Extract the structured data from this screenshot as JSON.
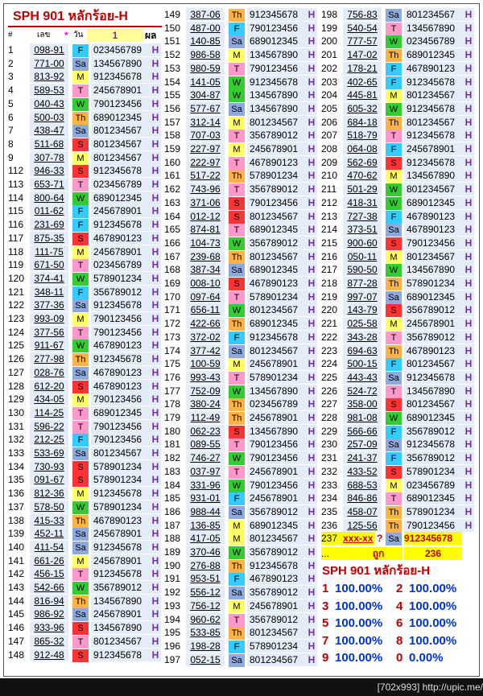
{
  "header": {
    "title": "SPH 901 หลักร้อย-H",
    "cols": [
      "#",
      "เลข",
      "*",
      "วัน",
      "1",
      "ผล"
    ]
  },
  "columns": [
    {
      "rows": [
        [
          "1",
          "098-91",
          "F",
          "023456789",
          "H"
        ],
        [
          "2",
          "771-00",
          "Sa",
          "134567890",
          "H"
        ],
        [
          "3",
          "813-92",
          "M",
          "912345678",
          "H"
        ],
        [
          "4",
          "589-53",
          "T",
          "245678901",
          "H"
        ],
        [
          "5",
          "040-43",
          "W",
          "790123456",
          "H"
        ],
        [
          "6",
          "500-03",
          "Th",
          "689012345",
          "H"
        ],
        [
          "7",
          "438-47",
          "Sa",
          "801234567",
          "H"
        ],
        [
          "8",
          "511-68",
          "S",
          "801234567",
          "H"
        ],
        [
          "9",
          "307-78",
          "M",
          "801234567",
          "H"
        ],
        [
          "112",
          "946-33",
          "S",
          "912345678",
          "H"
        ],
        [
          "113",
          "653-71",
          "T",
          "023456789",
          "H"
        ],
        [
          "114",
          "800-64",
          "W",
          "689012345",
          "H"
        ],
        [
          "115",
          "011-62",
          "F",
          "245678901",
          "H"
        ],
        [
          "116",
          "231-69",
          "F",
          "912345678",
          "H"
        ],
        [
          "117",
          "875-35",
          "S",
          "467890123",
          "H"
        ],
        [
          "118",
          "111-75",
          "M",
          "245678901",
          "H"
        ],
        [
          "119",
          "671-50",
          "T",
          "023456789",
          "H"
        ],
        [
          "120",
          "374-41",
          "W",
          "578901234",
          "H"
        ],
        [
          "121",
          "348-11",
          "F",
          "356789012",
          "H"
        ],
        [
          "122",
          "377-36",
          "Sa",
          "912345678",
          "H"
        ],
        [
          "123",
          "993-09",
          "M",
          "790123456",
          "H"
        ],
        [
          "124",
          "377-56",
          "T",
          "790123456",
          "H"
        ],
        [
          "125",
          "911-67",
          "W",
          "467890123",
          "H"
        ],
        [
          "126",
          "277-98",
          "Th",
          "912345678",
          "H"
        ],
        [
          "127",
          "028-76",
          "Sa",
          "467890123",
          "H"
        ],
        [
          "128",
          "612-20",
          "S",
          "467890123",
          "H"
        ],
        [
          "129",
          "434-05",
          "M",
          "790123456",
          "H"
        ],
        [
          "130",
          "114-25",
          "T",
          "689012345",
          "H"
        ],
        [
          "131",
          "596-22",
          "T",
          "790123456",
          "H"
        ],
        [
          "132",
          "212-25",
          "F",
          "790123456",
          "H"
        ],
        [
          "133",
          "533-69",
          "Sa",
          "801234567",
          "H"
        ],
        [
          "134",
          "730-93",
          "S",
          "578901234",
          "H"
        ],
        [
          "135",
          "091-67",
          "S",
          "578901234",
          "H"
        ],
        [
          "136",
          "812-36",
          "M",
          "912345678",
          "H"
        ],
        [
          "137",
          "578-50",
          "W",
          "578901234",
          "H"
        ],
        [
          "138",
          "415-33",
          "Th",
          "467890123",
          "H"
        ],
        [
          "139",
          "452-11",
          "Sa",
          "245678901",
          "H"
        ],
        [
          "140",
          "411-54",
          "Sa",
          "912345678",
          "H"
        ],
        [
          "141",
          "661-26",
          "M",
          "245678901",
          "H"
        ],
        [
          "142",
          "456-15",
          "T",
          "912345678",
          "H"
        ],
        [
          "143",
          "542-66",
          "W",
          "356789012",
          "H"
        ],
        [
          "144",
          "816-94",
          "Th",
          "134567890",
          "H"
        ],
        [
          "145",
          "986-92",
          "Sa",
          "245678901",
          "H"
        ],
        [
          "146",
          "933-96",
          "S",
          "134567890",
          "H"
        ],
        [
          "147",
          "865-32",
          "T",
          "801234567",
          "H"
        ],
        [
          "148",
          "912-48",
          "S",
          "912345678",
          "H"
        ]
      ]
    },
    {
      "rows": [
        [
          "149",
          "387-06",
          "Th",
          "912345678",
          "H"
        ],
        [
          "150",
          "487-00",
          "F",
          "790123456",
          "H"
        ],
        [
          "151",
          "140-85",
          "Sa",
          "689012345",
          "H"
        ],
        [
          "152",
          "986-58",
          "M",
          "134567890",
          "H"
        ],
        [
          "153",
          "980-59",
          "T",
          "790123456",
          "H"
        ],
        [
          "154",
          "141-05",
          "W",
          "912345678",
          "H"
        ],
        [
          "155",
          "304-87",
          "W",
          "134567890",
          "H"
        ],
        [
          "156",
          "577-67",
          "Sa",
          "134567890",
          "H"
        ],
        [
          "157",
          "312-14",
          "M",
          "801234567",
          "H"
        ],
        [
          "158",
          "707-03",
          "T",
          "356789012",
          "H"
        ],
        [
          "159",
          "227-97",
          "M",
          "245678901",
          "H"
        ],
        [
          "160",
          "222-97",
          "T",
          "467890123",
          "H"
        ],
        [
          "161",
          "517-22",
          "Th",
          "578901234",
          "H"
        ],
        [
          "162",
          "743-96",
          "T",
          "356789012",
          "H"
        ],
        [
          "163",
          "371-06",
          "S",
          "790123456",
          "H"
        ],
        [
          "164",
          "012-12",
          "S",
          "801234567",
          "H"
        ],
        [
          "165",
          "874-81",
          "T",
          "689012345",
          "H"
        ],
        [
          "166",
          "104-73",
          "W",
          "356789012",
          "H"
        ],
        [
          "167",
          "239-68",
          "Th",
          "801234567",
          "H"
        ],
        [
          "168",
          "387-34",
          "Sa",
          "689012345",
          "H"
        ],
        [
          "169",
          "008-10",
          "S",
          "467890123",
          "H"
        ],
        [
          "170",
          "097-64",
          "T",
          "578901234",
          "H"
        ],
        [
          "171",
          "656-11",
          "W",
          "801234567",
          "H"
        ],
        [
          "172",
          "422-66",
          "Th",
          "689012345",
          "H"
        ],
        [
          "173",
          "372-02",
          "F",
          "912345678",
          "H"
        ],
        [
          "174",
          "377-42",
          "Sa",
          "801234567",
          "H"
        ],
        [
          "175",
          "100-59",
          "M",
          "245678901",
          "H"
        ],
        [
          "176",
          "993-43",
          "T",
          "578901234",
          "H"
        ],
        [
          "177",
          "752-09",
          "W",
          "134567890",
          "H"
        ],
        [
          "178",
          "380-24",
          "Th",
          "023456789",
          "H"
        ],
        [
          "179",
          "112-49",
          "Th",
          "245678901",
          "H"
        ],
        [
          "180",
          "062-23",
          "S",
          "134567890",
          "H"
        ],
        [
          "181",
          "089-55",
          "T",
          "790123456",
          "H"
        ],
        [
          "182",
          "746-27",
          "W",
          "790123456",
          "H"
        ],
        [
          "183",
          "037-97",
          "T",
          "245678901",
          "H"
        ],
        [
          "184",
          "331-96",
          "W",
          "790123456",
          "H"
        ],
        [
          "185",
          "931-01",
          "F",
          "245678901",
          "H"
        ],
        [
          "186",
          "988-44",
          "Sa",
          "356789012",
          "H"
        ],
        [
          "187",
          "136-85",
          "M",
          "689012345",
          "H"
        ],
        [
          "188",
          "417-05",
          "M",
          "801234567",
          "H"
        ],
        [
          "189",
          "370-46",
          "W",
          "356789012",
          "H"
        ],
        [
          "190",
          "276-88",
          "Th",
          "912345678",
          "H"
        ],
        [
          "191",
          "953-51",
          "F",
          "467890123",
          "H"
        ],
        [
          "192",
          "556-12",
          "Sa",
          "356789012",
          "H"
        ],
        [
          "193",
          "756-12",
          "M",
          "245678901",
          "H"
        ],
        [
          "194",
          "960-62",
          "T",
          "356789012",
          "H"
        ],
        [
          "195",
          "533-85",
          "Th",
          "801234567",
          "H"
        ],
        [
          "196",
          "198-28",
          "F",
          "578901234",
          "H"
        ],
        [
          "197",
          "052-15",
          "Sa",
          "801234567",
          "H"
        ]
      ]
    },
    {
      "rows": [
        [
          "198",
          "756-83",
          "Sa",
          "801234567",
          "H"
        ],
        [
          "199",
          "540-54",
          "T",
          "134567890",
          "H"
        ],
        [
          "200",
          "777-57",
          "W",
          "023456789",
          "H"
        ],
        [
          "201",
          "147-02",
          "Th",
          "689012345",
          "H"
        ],
        [
          "202",
          "178-21",
          "F",
          "467890123",
          "H"
        ],
        [
          "203",
          "402-65",
          "F",
          "912345678",
          "H"
        ],
        [
          "204",
          "445-81",
          "M",
          "801234567",
          "H"
        ],
        [
          "205",
          "605-32",
          "W",
          "912345678",
          "H"
        ],
        [
          "206",
          "684-18",
          "Th",
          "801234567",
          "H"
        ],
        [
          "207",
          "518-79",
          "T",
          "912345678",
          "H"
        ],
        [
          "208",
          "064-08",
          "F",
          "245678901",
          "H"
        ],
        [
          "209",
          "562-69",
          "S",
          "912345678",
          "H"
        ],
        [
          "210",
          "470-62",
          "M",
          "134567890",
          "H"
        ],
        [
          "211",
          "501-29",
          "W",
          "801234567",
          "H"
        ],
        [
          "212",
          "418-31",
          "W",
          "689012345",
          "H"
        ],
        [
          "213",
          "727-38",
          "F",
          "467890123",
          "H"
        ],
        [
          "214",
          "373-51",
          "Sa",
          "467890123",
          "H"
        ],
        [
          "215",
          "900-60",
          "S",
          "790123456",
          "H"
        ],
        [
          "216",
          "050-11",
          "M",
          "801234567",
          "H"
        ],
        [
          "217",
          "590-50",
          "W",
          "134567890",
          "H"
        ],
        [
          "218",
          "877-28",
          "Th",
          "578901234",
          "H"
        ],
        [
          "219",
          "997-07",
          "Sa",
          "689012345",
          "H"
        ],
        [
          "220",
          "143-79",
          "S",
          "356789012",
          "H"
        ],
        [
          "221",
          "025-58",
          "M",
          "245678901",
          "H"
        ],
        [
          "222",
          "343-28",
          "T",
          "356789012",
          "H"
        ],
        [
          "223",
          "694-63",
          "Th",
          "467890123",
          "H"
        ],
        [
          "224",
          "500-15",
          "F",
          "801234567",
          "H"
        ],
        [
          "225",
          "443-43",
          "Sa",
          "912345678",
          "H"
        ],
        [
          "226",
          "524-72",
          "T",
          "134567890",
          "H"
        ],
        [
          "227",
          "358-00",
          "S",
          "801234567",
          "H"
        ],
        [
          "228",
          "981-08",
          "W",
          "689012345",
          "H"
        ],
        [
          "229",
          "566-66",
          "F",
          "356789012",
          "H"
        ],
        [
          "230",
          "257-09",
          "Sa",
          "912345678",
          "H"
        ],
        [
          "231",
          "241-37",
          "F",
          "356789012",
          "H"
        ],
        [
          "232",
          "433-52",
          "S",
          "578901234",
          "H"
        ],
        [
          "233",
          "688-53",
          "M",
          "023456789",
          "H"
        ],
        [
          "234",
          "846-86",
          "T",
          "689012345",
          "H"
        ],
        [
          "235",
          "458-07",
          "Th",
          "578901234",
          "H"
        ],
        [
          "236",
          "125-56",
          "Th",
          "790123456",
          "H"
        ]
      ]
    }
  ],
  "pending": {
    "num": "237",
    "code": "xxx-xx",
    "mark": "?",
    "day": "Sa",
    "digits": "912345678"
  },
  "tally": {
    "dots": "...",
    "label": "ถูก",
    "count": "236"
  },
  "summary": {
    "title": "SPH 901 หลักร้อย-H",
    "items": [
      [
        "1",
        "100.00%"
      ],
      [
        "2",
        "100.00%"
      ],
      [
        "3",
        "100.00%"
      ],
      [
        "4",
        "100.00%"
      ],
      [
        "5",
        "100.00%"
      ],
      [
        "6",
        "100.00%"
      ],
      [
        "7",
        "100.00%"
      ],
      [
        "8",
        "100.00%"
      ],
      [
        "9",
        "100.00%"
      ],
      [
        "0",
        "0.00%"
      ]
    ]
  },
  "footer": "[702x993] http://upic.me/"
}
